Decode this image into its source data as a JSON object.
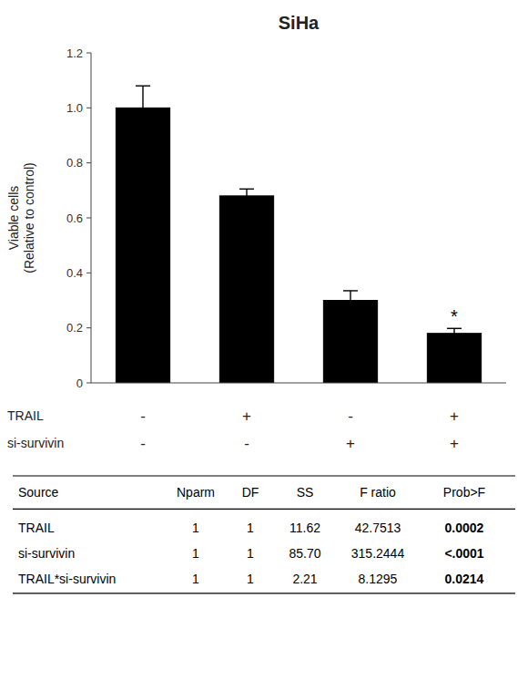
{
  "chart_data": {
    "type": "bar",
    "title": "SiHa",
    "ylabel": "Viable cells\n(Relative to control)",
    "categories": [
      null,
      null,
      null,
      null
    ],
    "values": [
      1.0,
      0.68,
      0.3,
      0.18
    ],
    "errors": [
      0.08,
      0.025,
      0.035,
      0.018
    ],
    "color": "#000000",
    "ylim": [
      0,
      1.2
    ],
    "yticks": [
      0,
      0.2,
      0.4,
      0.6,
      0.8,
      {
        "value": 1.0,
        "label": "1.0"
      },
      1.2
    ],
    "grid": false,
    "tick_labels": "y",
    "annotations": [
      {
        "text": "*",
        "bar": 3
      }
    ],
    "factors": [
      {
        "name": "TRAIL",
        "labels": [
          "-",
          "+",
          "-",
          "+"
        ]
      },
      {
        "name": "si-survivin",
        "labels": [
          "-",
          "-",
          "+",
          "+"
        ]
      }
    ],
    "table": {
      "header": [
        "Source",
        "Nparm",
        "DF",
        "SS",
        "F ratio",
        "Prob>F"
      ],
      "rows": [
        [
          "TRAIL",
          "1",
          "1",
          "11.62",
          "42.7513",
          "0.0002"
        ],
        [
          "si-survivin",
          "1",
          "1",
          "85.70",
          "315.2444",
          "<.0001"
        ],
        [
          "TRAIL*si-survivin",
          "1",
          "1",
          "2.21",
          "8.1295",
          "0.0214"
        ]
      ],
      "bold_column": 5
    }
  }
}
